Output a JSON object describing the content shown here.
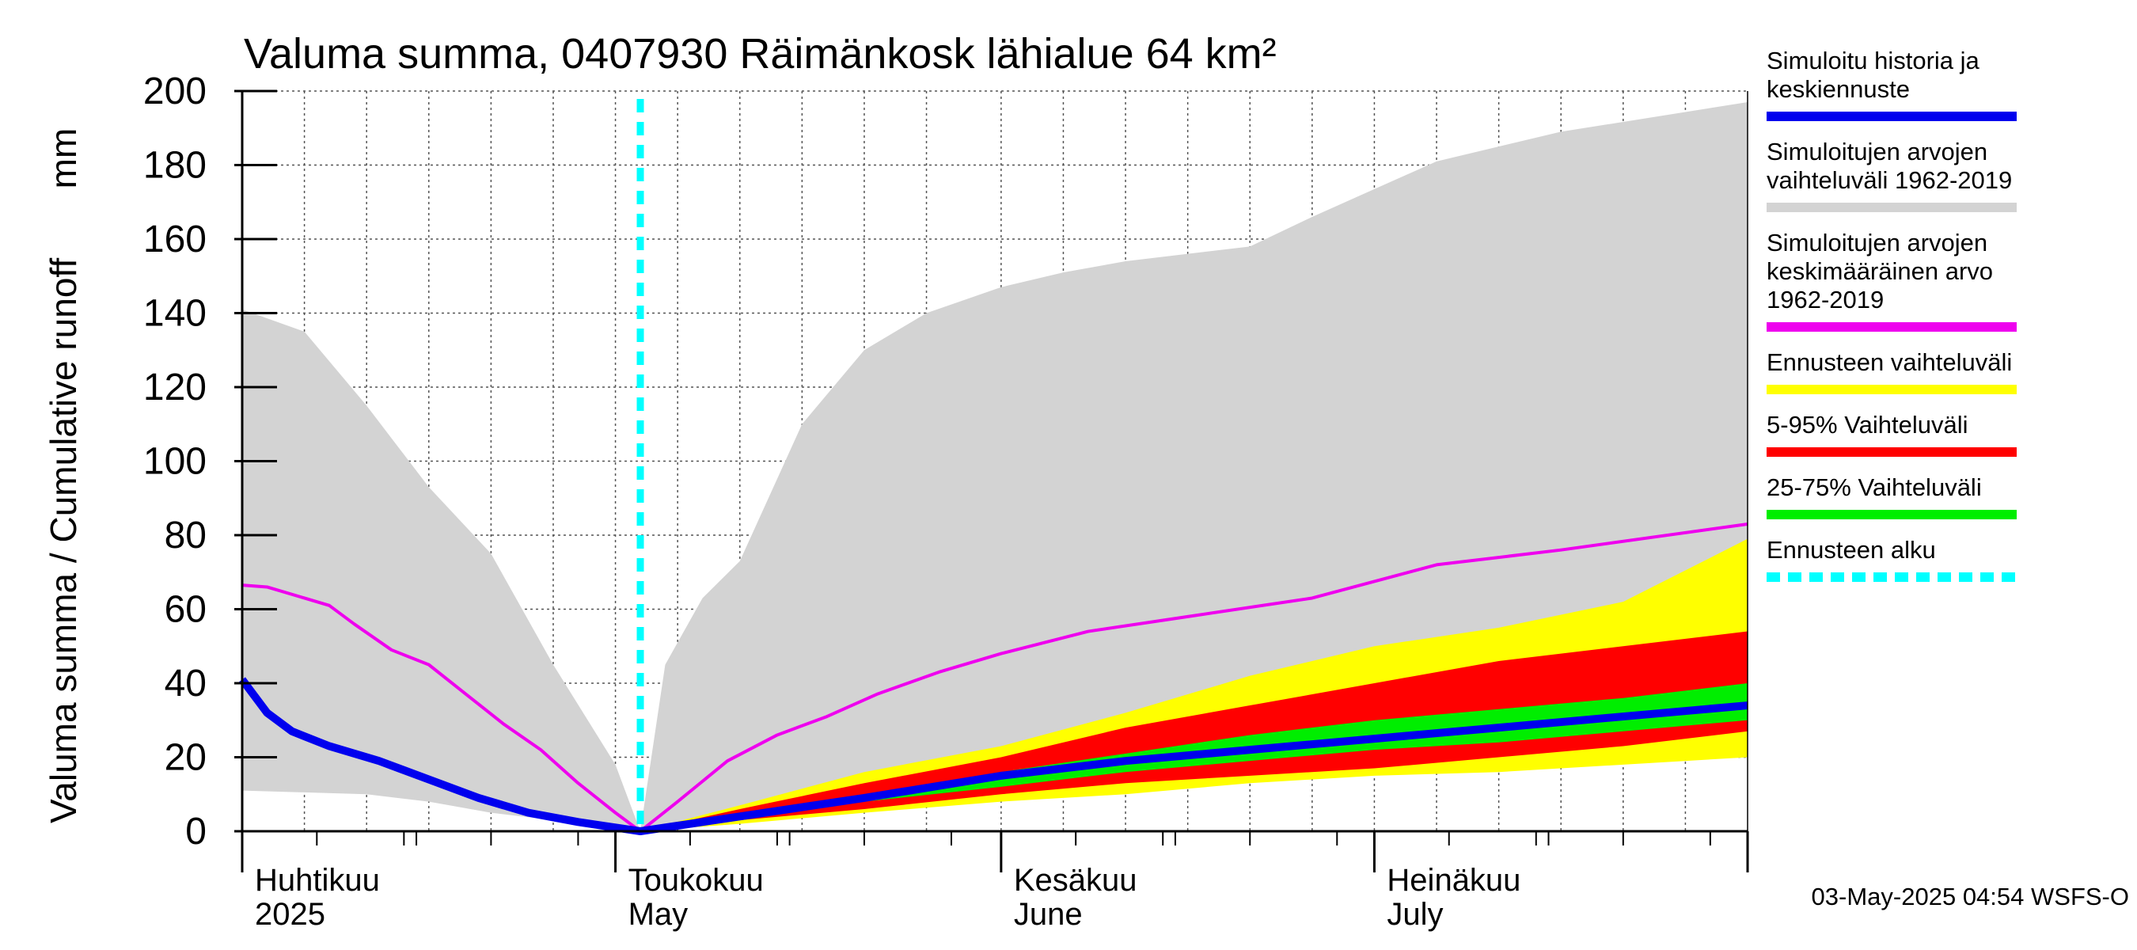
{
  "chart_data": {
    "type": "area",
    "title": "Valuma summa, 0407930 Räimänkosk lähialue 64 km²",
    "ylabel_left": "Valuma summa / Cumulative runoff",
    "ylabel_unit": "mm",
    "ylim": [
      0,
      200
    ],
    "yticks": [
      0,
      20,
      40,
      60,
      80,
      100,
      120,
      140,
      160,
      180,
      200
    ],
    "xlim": [
      "2025-04-01",
      "2025-07-31"
    ],
    "grid": true,
    "legend_position": "right",
    "forecast_start": "2025-05-03",
    "month_labels": [
      {
        "date": "2025-04-01",
        "fi": "Huhtikuu",
        "en": "2025"
      },
      {
        "date": "2025-05-01",
        "fi": "Toukokuu",
        "en": "May"
      },
      {
        "date": "2025-06-01",
        "fi": "Kesäkuu",
        "en": "June"
      },
      {
        "date": "2025-07-01",
        "fi": "Heinäkuu",
        "en": "July"
      }
    ],
    "legend": [
      {
        "key": "simulated",
        "text": [
          "Simuloitu historia ja",
          "keskiennuste"
        ],
        "color": "#0000ee",
        "style": "line"
      },
      {
        "key": "hist_range",
        "text": [
          "Simuloitujen arvojen",
          "vaihteluväli 1962-2019"
        ],
        "color": "#d3d3d3",
        "style": "line"
      },
      {
        "key": "hist_mean",
        "text": [
          "Simuloitujen arvojen",
          "keskimääräinen arvo",
          "   1962-2019"
        ],
        "color": "#ee00ee",
        "style": "line"
      },
      {
        "key": "fc_range",
        "text": [
          "Ennusteen vaihteluväli"
        ],
        "color": "#ffff00",
        "style": "line"
      },
      {
        "key": "p5_95",
        "text": [
          "5-95% Vaihteluväli"
        ],
        "color": "#ff0000",
        "style": "line"
      },
      {
        "key": "p25_75",
        "text": [
          "25-75% Vaihteluväli"
        ],
        "color": "#00ee00",
        "style": "line"
      },
      {
        "key": "fc_start",
        "text": [
          "Ennusteen alku"
        ],
        "color": "#00ffff",
        "style": "dash"
      }
    ],
    "series": {
      "hist_range": {
        "x": [
          "2025-04-01",
          "2025-04-06",
          "2025-04-11",
          "2025-04-16",
          "2025-04-21",
          "2025-04-26",
          "2025-05-01",
          "2025-05-03",
          "2025-05-05",
          "2025-05-08",
          "2025-05-11",
          "2025-05-16",
          "2025-05-21",
          "2025-05-26",
          "2025-06-01",
          "2025-06-06",
          "2025-06-11",
          "2025-06-21",
          "2025-06-26",
          "2025-07-06",
          "2025-07-16",
          "2025-07-31"
        ],
        "upper": [
          141,
          135,
          115,
          93,
          75,
          45,
          18,
          0,
          45,
          63,
          73,
          110,
          130,
          140,
          147,
          151,
          154,
          158,
          166,
          181,
          189,
          197
        ],
        "lower": [
          11,
          10.5,
          10,
          8,
          5,
          3,
          1,
          0,
          1,
          2,
          3,
          5,
          7,
          9,
          11,
          12,
          13,
          15,
          16,
          17,
          18,
          20
        ]
      },
      "hist_mean": {
        "x": [
          "2025-04-01",
          "2025-04-03",
          "2025-04-06",
          "2025-04-08",
          "2025-04-10",
          "2025-04-13",
          "2025-04-16",
          "2025-04-19",
          "2025-04-22",
          "2025-04-25",
          "2025-04-28",
          "2025-05-01",
          "2025-05-03",
          "2025-05-06",
          "2025-05-10",
          "2025-05-14",
          "2025-05-18",
          "2025-05-22",
          "2025-05-27",
          "2025-06-01",
          "2025-06-08",
          "2025-06-16",
          "2025-06-26",
          "2025-07-06",
          "2025-07-16",
          "2025-07-31"
        ],
        "values": [
          66.5,
          66,
          63,
          61,
          56,
          49,
          45,
          37,
          29,
          22,
          13,
          5,
          0,
          8,
          19,
          26,
          31,
          37,
          43,
          48,
          54,
          58,
          63,
          72,
          76,
          83
        ]
      },
      "fc_range": {
        "x": [
          "2025-05-03",
          "2025-05-11",
          "2025-05-21",
          "2025-06-01",
          "2025-06-11",
          "2025-06-21",
          "2025-07-01",
          "2025-07-11",
          "2025-07-21",
          "2025-07-31"
        ],
        "upper": [
          0,
          7,
          16,
          23,
          32,
          42,
          50,
          55,
          62,
          79
        ],
        "lower": [
          0,
          2,
          5,
          8,
          10,
          13,
          15,
          16,
          18,
          20
        ]
      },
      "p5_95": {
        "x": [
          "2025-05-03",
          "2025-05-11",
          "2025-05-21",
          "2025-06-01",
          "2025-06-11",
          "2025-06-21",
          "2025-07-01",
          "2025-07-11",
          "2025-07-21",
          "2025-07-31"
        ],
        "upper": [
          0,
          6,
          13,
          20,
          28,
          34,
          40,
          46,
          50,
          54
        ],
        "lower": [
          0,
          3,
          6,
          10,
          13,
          15,
          17,
          20,
          23,
          27
        ]
      },
      "p25_75": {
        "x": [
          "2025-05-03",
          "2025-05-11",
          "2025-05-21",
          "2025-06-01",
          "2025-06-11",
          "2025-06-21",
          "2025-07-01",
          "2025-07-11",
          "2025-07-21",
          "2025-07-31"
        ],
        "upper": [
          0,
          5,
          10,
          16,
          21,
          26,
          30,
          33,
          36,
          40
        ],
        "lower": [
          0,
          4,
          8,
          12,
          16,
          19,
          22,
          24,
          27,
          30
        ]
      },
      "simulated": {
        "x": [
          "2025-04-01",
          "2025-04-03",
          "2025-04-05",
          "2025-04-08",
          "2025-04-12",
          "2025-04-16",
          "2025-04-20",
          "2025-04-24",
          "2025-04-28",
          "2025-05-01",
          "2025-05-03",
          "2025-05-11",
          "2025-05-21",
          "2025-06-01",
          "2025-06-11",
          "2025-06-21",
          "2025-07-01",
          "2025-07-11",
          "2025-07-21",
          "2025-07-31"
        ],
        "values": [
          41,
          32,
          27,
          23,
          19,
          14,
          9,
          5,
          2.5,
          1,
          0,
          4,
          9,
          15,
          19,
          22,
          25,
          28,
          31,
          34
        ]
      }
    }
  },
  "footer": "03-May-2025 04:54 WSFS-O"
}
